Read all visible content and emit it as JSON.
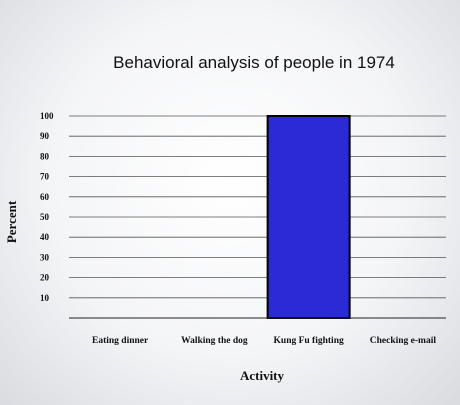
{
  "chart_data": {
    "type": "bar",
    "title": "Behavioral analysis of people in 1974",
    "xlabel": "Activity",
    "ylabel": "Percent",
    "categories": [
      "Eating dinner",
      "Walking the dog",
      "Kung Fu fighting",
      "Checking e-mail"
    ],
    "values": [
      0,
      0,
      100,
      0
    ],
    "yticks": [
      10,
      20,
      30,
      40,
      50,
      60,
      70,
      80,
      90,
      100
    ],
    "ylim": [
      0,
      100
    ],
    "grid": true,
    "bar_color": "#2a2bd6"
  }
}
